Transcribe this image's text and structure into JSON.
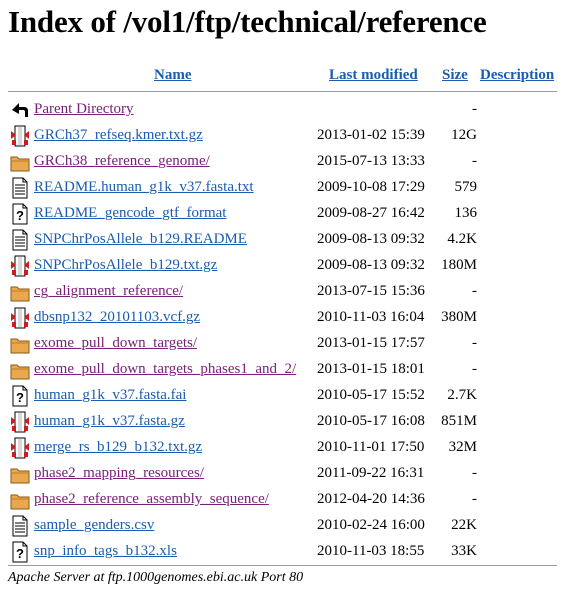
{
  "page": {
    "title": "Index of /vol1/ftp/technical/reference",
    "footer": "Apache Server at ftp.1000genomes.ebi.ac.uk Port 80"
  },
  "columns": {
    "name": "Name",
    "last_modified": "Last modified",
    "size": "Size",
    "description": "Description"
  },
  "parent": {
    "name": "Parent Directory",
    "size": "-",
    "icon": "back-arrow-icon"
  },
  "entries": [
    {
      "name": "GRCh37_refseq.kmer.txt.gz",
      "modified": "2013-01-02 15:39",
      "size": "12G",
      "type": "compressed"
    },
    {
      "name": "GRCh38_reference_genome/",
      "modified": "2015-07-13 13:33",
      "size": "-",
      "type": "folder"
    },
    {
      "name": "README.human_g1k_v37.fasta.txt",
      "modified": "2009-10-08 17:29",
      "size": "579",
      "type": "text"
    },
    {
      "name": "README_gencode_gtf_format",
      "modified": "2009-08-27 16:42",
      "size": "136",
      "type": "unknown"
    },
    {
      "name": "SNPChrPosAllele_b129.README",
      "modified": "2009-08-13 09:32",
      "size": "4.2K",
      "type": "text"
    },
    {
      "name": "SNPChrPosAllele_b129.txt.gz",
      "modified": "2009-08-13 09:32",
      "size": "180M",
      "type": "compressed"
    },
    {
      "name": "cg_alignment_reference/",
      "modified": "2013-07-15 15:36",
      "size": "-",
      "type": "folder"
    },
    {
      "name": "dbsnp132_20101103.vcf.gz",
      "modified": "2010-11-03 16:04",
      "size": "380M",
      "type": "compressed"
    },
    {
      "name": "exome_pull_down_targets/",
      "modified": "2013-01-15 17:57",
      "size": "-",
      "type": "folder"
    },
    {
      "name": "exome_pull_down_targets_phases1_and_2/",
      "modified": "2013-01-15 18:01",
      "size": "-",
      "type": "folder"
    },
    {
      "name": "human_g1k_v37.fasta.fai",
      "modified": "2010-05-17 15:52",
      "size": "2.7K",
      "type": "unknown"
    },
    {
      "name": "human_g1k_v37.fasta.gz",
      "modified": "2010-05-17 16:08",
      "size": "851M",
      "type": "compressed"
    },
    {
      "name": "merge_rs_b129_b132.txt.gz",
      "modified": "2010-11-01 17:50",
      "size": "32M",
      "type": "compressed"
    },
    {
      "name": "phase2_mapping_resources/",
      "modified": "2011-09-22 16:31",
      "size": "-",
      "type": "folder"
    },
    {
      "name": "phase2_reference_assembly_sequence/",
      "modified": "2012-04-20 14:36",
      "size": "-",
      "type": "folder"
    },
    {
      "name": "sample_genders.csv",
      "modified": "2010-02-24 16:00",
      "size": "22K",
      "type": "text"
    },
    {
      "name": "snp_info_tags_b132.xls",
      "modified": "2010-11-03 18:55",
      "size": "33K",
      "type": "unknown"
    }
  ],
  "colors": {
    "link": "#1a5cb0",
    "visited_link": "#7a2079",
    "rule": "#9a9a9a"
  }
}
